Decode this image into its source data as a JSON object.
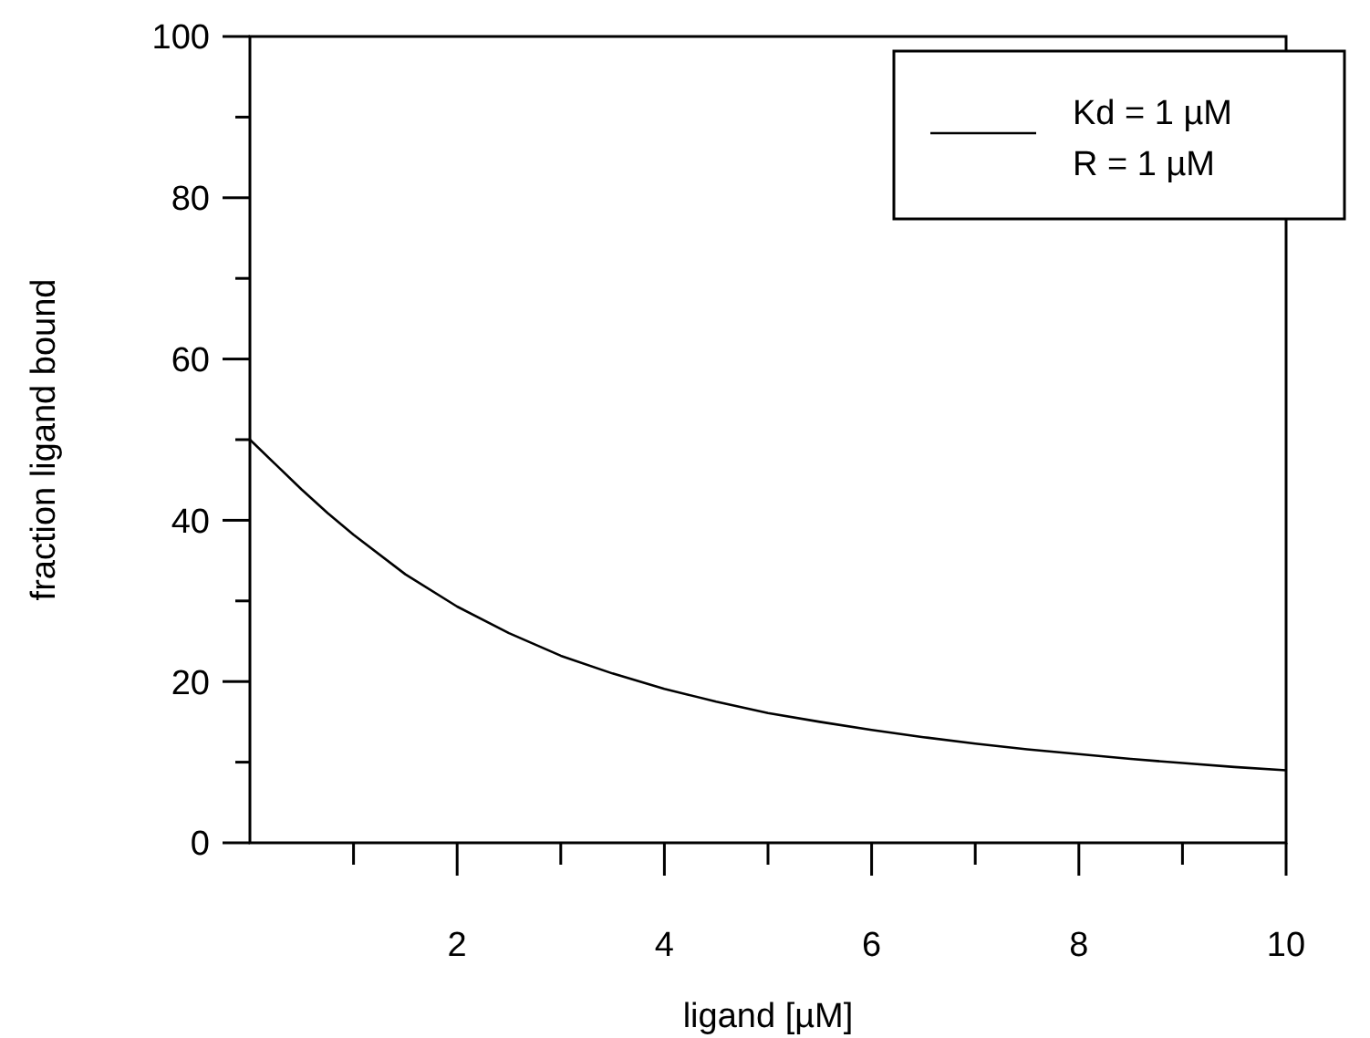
{
  "chart_data": {
    "type": "line",
    "xlabel": "ligand [µM]",
    "ylabel": "fraction ligand bound",
    "x": [
      0,
      0.25,
      0.5,
      0.75,
      1,
      1.5,
      2,
      2.5,
      3,
      3.5,
      4,
      4.5,
      5,
      5.5,
      6,
      6.5,
      7,
      7.5,
      8,
      8.5,
      9,
      9.5,
      10
    ],
    "series": [
      {
        "name": "Kd = 1 µM\nR = 1 µM",
        "color": "#000000",
        "values": [
          50,
          46.9,
          43.8,
          40.9,
          38.2,
          33.3,
          29.3,
          26.0,
          23.2,
          21.0,
          19.1,
          17.5,
          16.1,
          15.0,
          14.0,
          13.1,
          12.3,
          11.6,
          11.0,
          10.4,
          9.9,
          9.4,
          9.0
        ]
      }
    ],
    "xlim": [
      0,
      10
    ],
    "ylim": [
      0,
      100
    ],
    "xticks": [
      {
        "value": 1,
        "label": null
      },
      2,
      {
        "value": 3,
        "label": null
      },
      4,
      {
        "value": 5,
        "label": null
      },
      6,
      {
        "value": 7,
        "label": null
      },
      8,
      {
        "value": 9,
        "label": null
      },
      10
    ],
    "yticks": [
      0,
      {
        "value": 10,
        "label": null
      },
      20,
      {
        "value": 30,
        "label": null
      },
      40,
      {
        "value": 50,
        "label": null
      },
      60,
      {
        "value": 70,
        "label": null
      },
      80,
      {
        "value": 90,
        "label": null
      },
      100
    ],
    "grid": false,
    "legend": "top right",
    "marker": "none",
    "line_style": "solid"
  }
}
